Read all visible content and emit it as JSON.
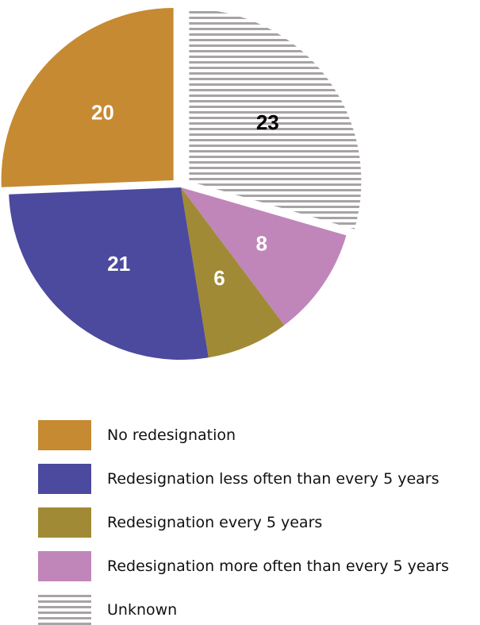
{
  "chart_data": {
    "type": "pie",
    "slices": [
      {
        "label": "Unknown",
        "value": 23,
        "color": "#a8a3a4",
        "pattern": "horizontal-stripes",
        "label_color": "#000000",
        "exploded": true
      },
      {
        "label": "Redesignation more often than every 5 years",
        "value": 8,
        "color": "#c086ba",
        "pattern": "solid",
        "label_color": "#ffffff",
        "exploded": false
      },
      {
        "label": "Redesignation every 5 years",
        "value": 6,
        "color": "#a18a35",
        "pattern": "solid",
        "label_color": "#ffffff",
        "exploded": false
      },
      {
        "label": "Redesignation less often than every 5 years",
        "value": 21,
        "color": "#4b4a9e",
        "pattern": "solid",
        "label_color": "#ffffff",
        "exploded": false
      },
      {
        "label": "No redesignation",
        "value": 20,
        "color": "#c68a32",
        "pattern": "solid",
        "label_color": "#ffffff",
        "exploded": true
      }
    ],
    "legend": [
      {
        "label": "No redesignation",
        "color": "#c68a32",
        "pattern": "solid"
      },
      {
        "label": "Redesignation less often than every 5 years",
        "color": "#4b4a9e",
        "pattern": "solid"
      },
      {
        "label": "Redesignation every 5 years",
        "color": "#a18a35",
        "pattern": "solid"
      },
      {
        "label": "Redesignation more often than every 5 years",
        "color": "#c086ba",
        "pattern": "solid"
      },
      {
        "label": "Unknown",
        "color": "#a8a3a4",
        "pattern": "horizontal-stripes"
      }
    ],
    "legend_position": "bottom",
    "start": "12 o'clock",
    "direction": "clockwise"
  }
}
